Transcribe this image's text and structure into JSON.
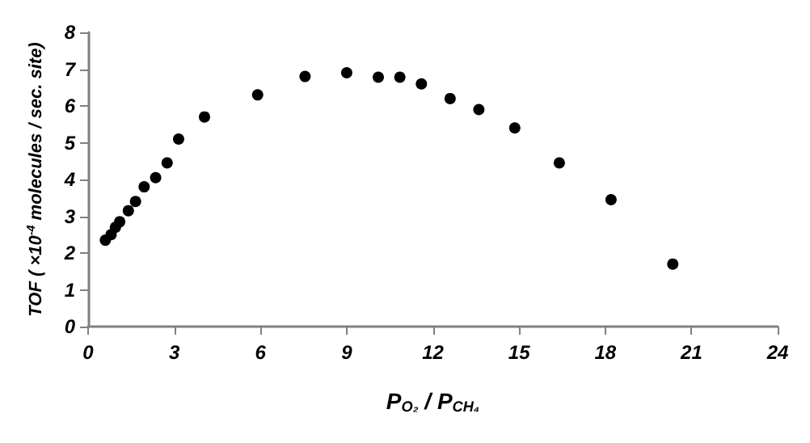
{
  "chart_data": {
    "type": "scatter",
    "xlabel": "P$_{O₂}$ / P$_{CH₄}$",
    "ylabel": "TOF ( ×10$^{-4}$ molecules / sec. site)",
    "x": [
      0.6,
      0.8,
      0.95,
      1.1,
      1.4,
      1.65,
      1.95,
      2.35,
      2.75,
      3.15,
      4.05,
      5.9,
      7.55,
      9.0,
      10.1,
      10.85,
      11.6,
      12.6,
      13.6,
      14.85,
      16.4,
      18.2,
      20.35
    ],
    "series": [
      {
        "color": "#000000",
        "values": [
          2.35,
          2.5,
          2.7,
          2.85,
          3.15,
          3.4,
          3.8,
          4.05,
          4.45,
          5.1,
          5.7,
          6.3,
          6.8,
          6.9,
          6.78,
          6.78,
          6.6,
          6.2,
          5.9,
          5.4,
          4.45,
          3.45,
          1.7
        ]
      }
    ],
    "xlim": [
      0,
      24
    ],
    "xticks": [
      0,
      3,
      6,
      9,
      12,
      15,
      18,
      21,
      24
    ],
    "ylim": [
      0,
      8
    ],
    "yticks": [
      0,
      1,
      2,
      3,
      4,
      5,
      6,
      7,
      8
    ],
    "grid": false,
    "marker": "circle"
  }
}
